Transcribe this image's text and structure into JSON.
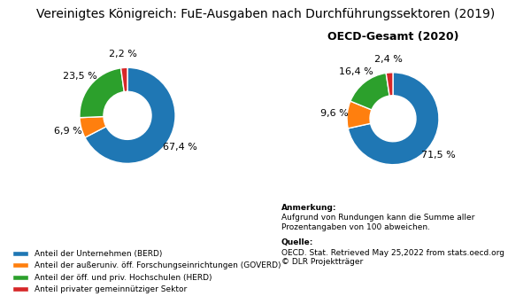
{
  "chart_data": [
    {
      "type": "pie",
      "title": "Vereinigtes Königreich: FuE-Ausgaben nach Durchführungssektoren (2019)",
      "categories": [
        "Anteil der Unternehmen (BERD)",
        "Anteil der außeruniv. öff. Forschungseinrichtungen (GOVERD)",
        "Anteil der öff. und priv. Hochschulen (HERD)",
        "Anteil privater gemeinnütziger Sektor"
      ],
      "values": [
        67.4,
        6.9,
        23.5,
        2.2
      ],
      "value_labels": [
        "67,4 %",
        "6,9 %",
        "23,5 %",
        "2,2 %"
      ],
      "data_labels": true,
      "legend": "lower left",
      "annotations": [
        "Anmerkung:",
        "Aufgrund von Rundungen kann die Summe aller\nProzentangaben von 100 abweichen.",
        "Quelle:",
        "OECD. Stat. Retrieved May 25,2022 from stats.oecd.org\n© DLR Projektträger"
      ]
    },
    {
      "type": "pie",
      "title": "OECD-Gesamt (2020)",
      "categories": [
        "Anteil der Unternehmen (BERD)",
        "Anteil der außeruniv. öff. Forschungseinrichtungen (GOVERD)",
        "Anteil der öff. und priv. Hochschulen (HERD)",
        "Anteil privater gemeinnütziger Sektor"
      ],
      "values": [
        71.5,
        9.6,
        16.4,
        2.4
      ],
      "value_labels": [
        "71,5 %",
        "9,6 %",
        "16,4 %",
        "2,4 %"
      ],
      "data_labels": true
    }
  ]
}
